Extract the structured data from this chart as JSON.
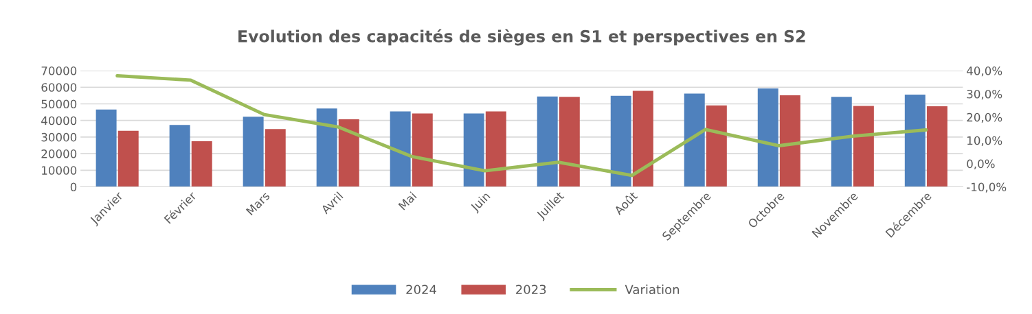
{
  "chart_data": {
    "type": "bar",
    "title": "Evolution des capacités de sièges en S1 et perspectives en S2",
    "categories": [
      "Janvier",
      "Février",
      "Mars",
      "Avril",
      "Mai",
      "Juin",
      "Juillet",
      "Août",
      "Septembre",
      "Octobre",
      "Novembre",
      "Décembre"
    ],
    "series": [
      {
        "name": "2024",
        "color": "#4f81bd",
        "values": [
          46600,
          37300,
          42200,
          47200,
          45400,
          44200,
          54400,
          54800,
          56200,
          59300,
          54200,
          55600
        ]
      },
      {
        "name": "2023",
        "color": "#c0504d",
        "values": [
          33800,
          27500,
          34800,
          40700,
          44200,
          45400,
          54200,
          57800,
          49100,
          55200,
          48700,
          48500
        ]
      },
      {
        "name": "Variation",
        "type": "line",
        "axis": "y2",
        "color": "#9bbb59",
        "values": [
          37.8,
          35.9,
          21.1,
          15.8,
          3.1,
          -3.1,
          0.6,
          -5.1,
          14.7,
          7.7,
          11.8,
          14.5
        ]
      }
    ],
    "ylim": [
      0,
      70000
    ],
    "yticks": [
      0,
      10000,
      20000,
      30000,
      40000,
      50000,
      60000,
      70000
    ],
    "y2lim": [
      -10,
      40
    ],
    "y2ticks": [
      {
        "value": -10,
        "label": "-10,0%"
      },
      {
        "value": 0,
        "label": "0,0%"
      },
      {
        "value": 10,
        "label": "10,0%"
      },
      {
        "value": 20,
        "label": "20,0%"
      },
      {
        "value": 30,
        "label": "30,0%"
      },
      {
        "value": 40,
        "label": "40,0%"
      }
    ],
    "grid": "y",
    "legend": "bottom",
    "marker": "none",
    "line_style": "solid"
  }
}
